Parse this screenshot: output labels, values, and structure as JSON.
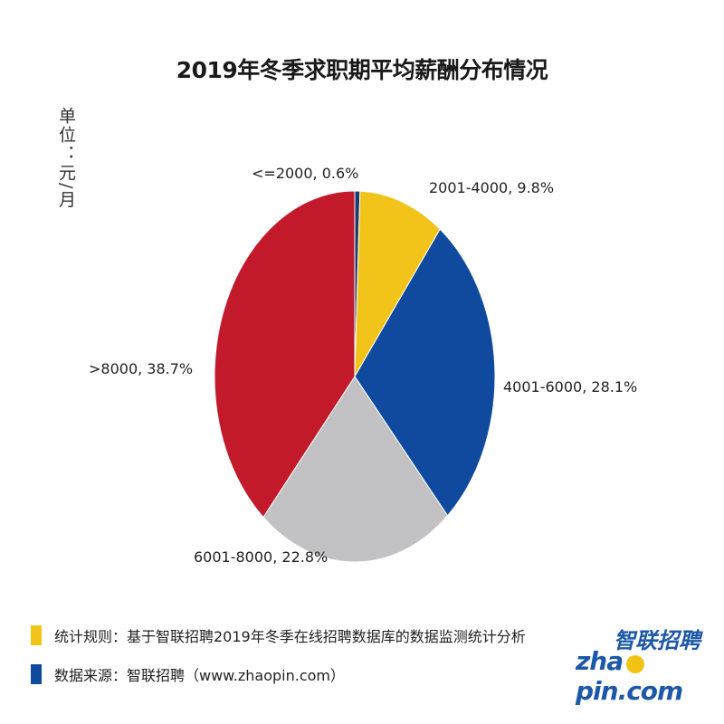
{
  "chart_data": {
    "type": "pie",
    "title": "2019年冬季求职期平均薪酬分布情况",
    "unit_label": "单位：元/月",
    "start": "top",
    "direction": "clockwise",
    "slices": [
      {
        "category": "<=2000",
        "value": 0.6,
        "label": "<=2000, 0.6%",
        "color": "#1f3a6e"
      },
      {
        "category": "2001-4000",
        "value": 9.8,
        "label": "2001-4000, 9.8%",
        "color": "#f2c41a"
      },
      {
        "category": "4001-6000",
        "value": 28.1,
        "label": "4001-6000, 28.1%",
        "color": "#0f4a9e"
      },
      {
        "category": "6001-8000",
        "value": 22.8,
        "label": "6001-8000, 22.8%",
        "color": "#c2c2c4"
      },
      {
        "category": ">8000",
        "value": 38.7,
        "label": ">8000, 38.7%",
        "color": "#c21a2b"
      }
    ]
  },
  "footer": {
    "rule": "统计规则：基于智联招聘2019年冬季在线招聘数据库的数据监测统计分析",
    "source": "数据来源：智联招聘（www.zhaopin.com）",
    "rule_color": "#f2c41a",
    "source_color": "#0f4a9e"
  },
  "logo": {
    "cn": "智联招聘",
    "en_left": "zha",
    "en_right": "pin.com"
  }
}
